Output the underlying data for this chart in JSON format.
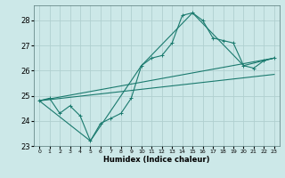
{
  "xlabel": "Humidex (Indice chaleur)",
  "ylabel": "",
  "background_color": "#cce8e8",
  "grid_color": "#b0d0d0",
  "line_color": "#1a7a6e",
  "xlim": [
    -0.5,
    23.5
  ],
  "ylim": [
    23,
    28.6
  ],
  "yticks": [
    23,
    24,
    25,
    26,
    27,
    28
  ],
  "xticks": [
    0,
    1,
    2,
    3,
    4,
    5,
    6,
    7,
    8,
    9,
    10,
    11,
    12,
    13,
    14,
    15,
    16,
    17,
    18,
    19,
    20,
    21,
    22,
    23
  ],
  "series1": {
    "x": [
      0,
      1,
      2,
      3,
      4,
      5,
      6,
      7,
      8,
      9,
      10,
      11,
      12,
      13,
      14,
      15,
      16,
      17,
      18,
      19,
      20,
      21,
      22,
      23
    ],
    "y": [
      24.8,
      24.9,
      24.3,
      24.6,
      24.2,
      23.2,
      23.9,
      24.1,
      24.3,
      24.9,
      26.2,
      26.5,
      26.6,
      27.1,
      28.2,
      28.3,
      28.0,
      27.3,
      27.2,
      27.1,
      26.2,
      26.1,
      26.4,
      26.5
    ]
  },
  "series2": {
    "x": [
      0,
      5,
      10,
      15,
      20,
      23
    ],
    "y": [
      24.8,
      23.2,
      26.2,
      28.3,
      26.2,
      26.5
    ]
  },
  "series3": {
    "x": [
      0,
      23
    ],
    "y": [
      24.8,
      26.5
    ]
  },
  "series4": {
    "x": [
      0,
      23
    ],
    "y": [
      24.8,
      25.85
    ]
  }
}
